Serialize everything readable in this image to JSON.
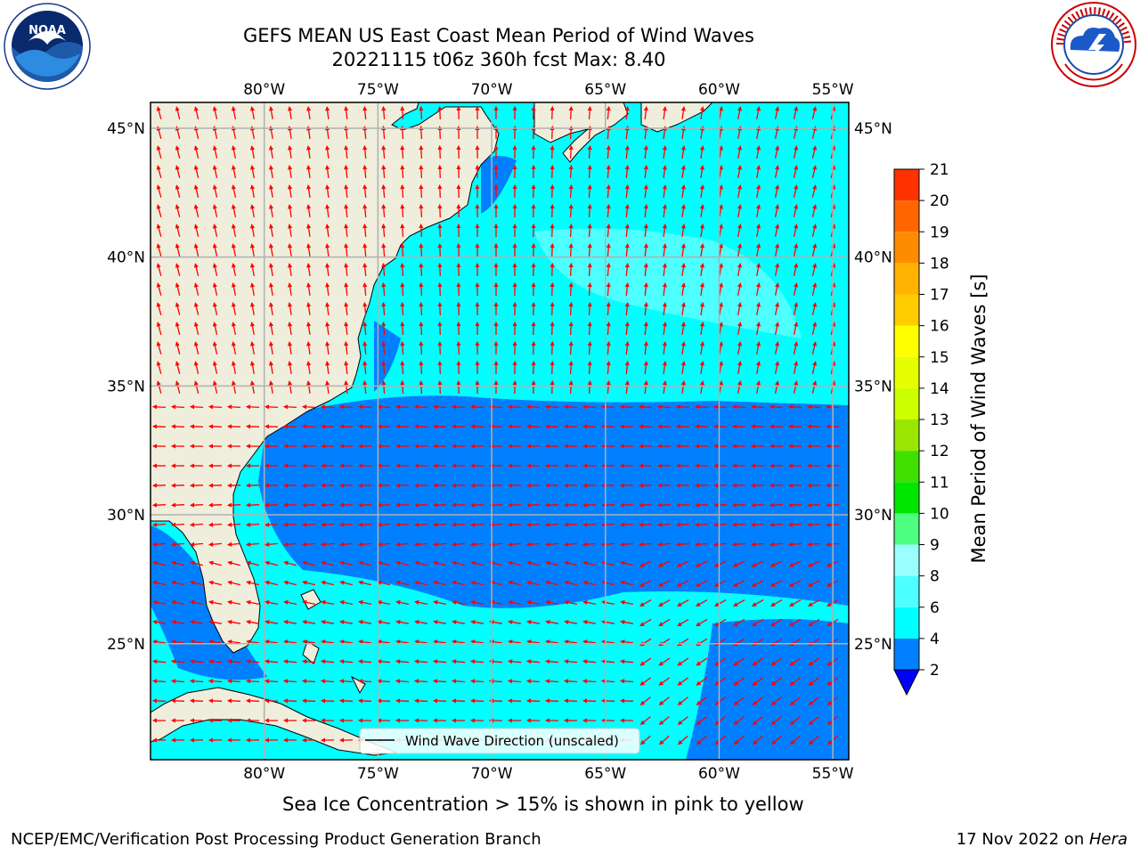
{
  "title": {
    "line1": "GEFS MEAN US East Coast Mean Period of Wind Waves",
    "line2": "20221115 t06z 360h fcst   Max: 8.40"
  },
  "map": {
    "lon_ticks": [
      "80°W",
      "75°W",
      "70°W",
      "65°W",
      "60°W",
      "55°W"
    ],
    "lat_ticks": [
      "45°N",
      "40°N",
      "35°N",
      "30°N",
      "25°N"
    ],
    "lon_range": [
      -85,
      -54.3
    ],
    "lat_range": [
      20.5,
      46
    ],
    "legend_label": "Wind Wave Direction (unscaled)",
    "colors": {
      "land": "#efeedc",
      "water_light": "#00ffff",
      "water_mid": "#4dffff",
      "water_dark": "#0080ff",
      "arrow": "#ff0000",
      "grid": "#b0b0b0"
    }
  },
  "colorbar": {
    "label": "Mean Period of Wind Waves [s]",
    "ticks": [
      "2",
      "4",
      "6",
      "8",
      "9",
      "10",
      "11",
      "12",
      "13",
      "14",
      "15",
      "16",
      "17",
      "18",
      "19",
      "20",
      "21"
    ],
    "under_color": "#0000ff",
    "colors": [
      "#0080ff",
      "#00ffff",
      "#4dffff",
      "#99ffff",
      "#4dff80",
      "#00e600",
      "#40e000",
      "#99e600",
      "#ccff00",
      "#e6ff00",
      "#ffff00",
      "#ffcc00",
      "#ffb300",
      "#ff8c00",
      "#ff6600",
      "#ff3300",
      "#ff0000"
    ]
  },
  "note": "Sea Ice Concentration > 15% is shown in pink to yellow",
  "footer": {
    "left": "NCEP/EMC/Verification Post Processing Product Generation Branch",
    "right_date": "17 Nov 2022 on ",
    "right_machine": "Hera"
  },
  "logos": {
    "left": "noaa-logo",
    "right": "nws-logo"
  }
}
